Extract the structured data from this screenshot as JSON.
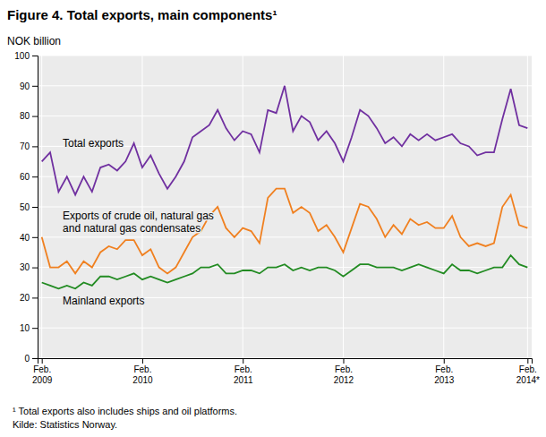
{
  "chart_data": {
    "type": "line",
    "title": "Figure 4. Total exports, main components¹",
    "y_label": "NOK billion",
    "annotations": [
      "¹ Total exports also includes ships and oil platforms.",
      "Kilde: Statistics Norway."
    ],
    "categories": [
      "Feb.\n2009",
      null,
      null,
      null,
      null,
      null,
      null,
      null,
      null,
      null,
      null,
      null,
      "Feb.\n2010",
      null,
      null,
      null,
      null,
      null,
      null,
      null,
      null,
      null,
      null,
      null,
      "Feb.\n2011",
      null,
      null,
      null,
      null,
      null,
      null,
      null,
      null,
      null,
      null,
      null,
      "Feb.\n2012",
      null,
      null,
      null,
      null,
      null,
      null,
      null,
      null,
      null,
      null,
      null,
      "Feb.\n2013",
      null,
      null,
      null,
      null,
      null,
      null,
      null,
      null,
      null,
      "Feb.\n2014*"
    ],
    "series": [
      {
        "name": "Total exports",
        "color": "#7030a0",
        "values": [
          65,
          68,
          55,
          60,
          54,
          60,
          55,
          63,
          64,
          62,
          65,
          71,
          63,
          67,
          61,
          56,
          60,
          65,
          73,
          75,
          77,
          82,
          76,
          72,
          75,
          74,
          68,
          82,
          81,
          90,
          75,
          80,
          78,
          72,
          75,
          71,
          65,
          73,
          82,
          80,
          76,
          71,
          73,
          70,
          74,
          72,
          74,
          72,
          73,
          74,
          71,
          70,
          67,
          68,
          68,
          79,
          89,
          77,
          76
        ]
      },
      {
        "name": "Exports of crude oil, natural gas\nand natural gas condensates",
        "color": "#f08020",
        "values": [
          40,
          30,
          30,
          32,
          28,
          32,
          30,
          35,
          37,
          36,
          39,
          39,
          34,
          36,
          30,
          28,
          30,
          35,
          40,
          42,
          47,
          50,
          43,
          40,
          43,
          42,
          38,
          53,
          56,
          56,
          48,
          50,
          48,
          42,
          44,
          40,
          35,
          43,
          51,
          50,
          46,
          40,
          44,
          41,
          46,
          44,
          45,
          43,
          43,
          47,
          40,
          37,
          38,
          37,
          38,
          50,
          54,
          44,
          43
        ]
      },
      {
        "name": "Mainland exports",
        "color": "#228B22",
        "values": [
          25,
          24,
          23,
          24,
          23,
          25,
          24,
          27,
          27,
          26,
          27,
          28,
          26,
          27,
          26,
          25,
          26,
          27,
          28,
          30,
          30,
          31,
          28,
          28,
          29,
          29,
          28,
          30,
          30,
          31,
          29,
          30,
          29,
          30,
          30,
          29,
          27,
          29,
          31,
          31,
          30,
          30,
          30,
          29,
          30,
          31,
          30,
          29,
          28,
          31,
          29,
          29,
          28,
          29,
          30,
          30,
          34,
          31,
          30
        ]
      }
    ],
    "ylim": [
      0,
      100
    ],
    "yticks": [
      0,
      10,
      20,
      30,
      40,
      50,
      60,
      70,
      80,
      90,
      100
    ],
    "grid": true
  }
}
